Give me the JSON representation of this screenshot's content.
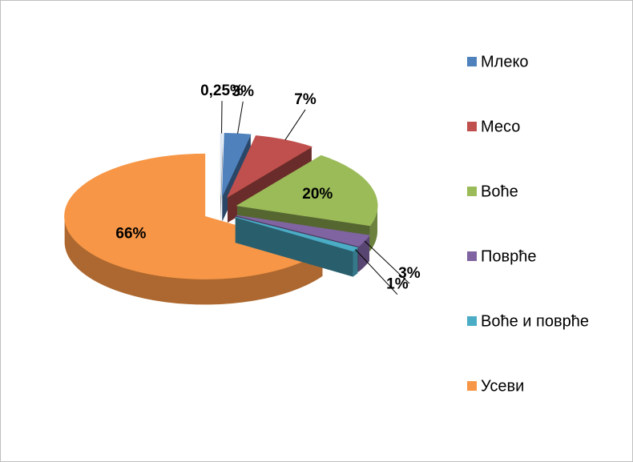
{
  "chart_data": {
    "type": "pie3d",
    "categories": [
      null,
      "Млеко",
      "Месо",
      "Воће",
      "Поврће",
      "Воће и поврће",
      "Усеви"
    ],
    "values": [
      0.25,
      3,
      7,
      20,
      3,
      1,
      66
    ],
    "value_labels": [
      "0,25%",
      "3%",
      "7%",
      "20%",
      "3%",
      "1%",
      "66%"
    ],
    "colors": [
      "#dce6f2",
      "#4f81bd",
      "#c0504d",
      "#9bbb59",
      "#8064a2",
      "#4bacc6",
      "#f79646"
    ],
    "legend": "right"
  }
}
